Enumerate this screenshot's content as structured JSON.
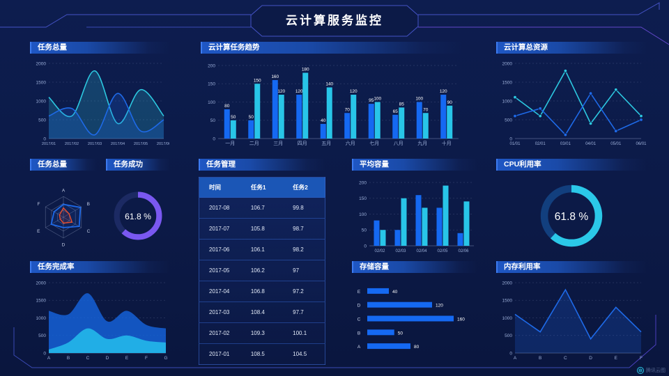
{
  "title": "云计算服务监控",
  "watermark": "腾讯云图",
  "colors": {
    "background": "#0c1a47",
    "blue": "#1569f2",
    "cyan": "#28c5e8",
    "line_blue": "#1e6ae8",
    "line_cyan": "#2cc8e0",
    "purple": "#7a58f0",
    "orange": "#e84e2c",
    "axis_text": "#9db0da",
    "frame_line": "#4553c6"
  },
  "panels": {
    "tasks_total": {
      "title": "任务总量"
    },
    "trend": {
      "title": "云计算任务趋势"
    },
    "resources": {
      "title": "云计算总资源"
    },
    "radar": {
      "title": "任务总量"
    },
    "success": {
      "title": "任务成功"
    },
    "table": {
      "title": "任务管理"
    },
    "capacity": {
      "title": "平均容量"
    },
    "cpu": {
      "title": "CPU利用率"
    },
    "completion": {
      "title": "任务完成率"
    },
    "storage": {
      "title": "存储容量"
    },
    "memory": {
      "title": "内存利用率"
    }
  },
  "chart_data": [
    {
      "id": "tasks_total",
      "type": "line",
      "title": "任务总量",
      "smooth": true,
      "area": true,
      "markers": false,
      "x": [
        "2017/01",
        "2017/02",
        "2017/03",
        "2017/04",
        "2017/05",
        "2017/06"
      ],
      "series": [
        {
          "name": "series-cyan",
          "color": "#2cc8e0",
          "values": [
            1100,
            600,
            1800,
            400,
            1300,
            600
          ]
        },
        {
          "name": "series-blue",
          "color": "#1e6ae8",
          "values": [
            600,
            800,
            100,
            1200,
            200,
            500
          ]
        }
      ],
      "ylim": [
        0,
        2000
      ],
      "yticks": [
        0,
        500,
        1000,
        1500,
        2000
      ],
      "grid": true,
      "xfont": 5.6
    },
    {
      "id": "trend",
      "type": "bar",
      "title": "云计算任务趋势",
      "value_labels": true,
      "categories": [
        "一月",
        "二月",
        "三月",
        "四月",
        "五月",
        "六月",
        "七月",
        "八月",
        "九月",
        "十月"
      ],
      "series": [
        {
          "name": "任务1",
          "color": "#1569f2",
          "values": [
            80,
            50,
            160,
            120,
            40,
            70,
            95,
            65,
            100,
            120
          ]
        },
        {
          "name": "任务2",
          "color": "#28c5e8",
          "values": [
            50,
            150,
            120,
            180,
            140,
            120,
            100,
            85,
            70,
            90
          ]
        }
      ],
      "ylim": [
        0,
        200
      ],
      "yticks": [
        0,
        50,
        100,
        150,
        200
      ],
      "grid": true,
      "xfont": 7
    },
    {
      "id": "resources",
      "type": "line",
      "title": "云计算总资源",
      "smooth": false,
      "area": false,
      "markers": true,
      "x": [
        "01/01",
        "02/01",
        "03/01",
        "04/01",
        "05/01",
        "06/01"
      ],
      "series": [
        {
          "name": "series-cyan",
          "color": "#2cc8e0",
          "values": [
            1100,
            600,
            1800,
            400,
            1300,
            600
          ]
        },
        {
          "name": "series-blue",
          "color": "#1e6ae8",
          "values": [
            600,
            800,
            100,
            1200,
            200,
            500
          ]
        }
      ],
      "ylim": [
        0,
        2000
      ],
      "yticks": [
        0,
        500,
        1000,
        1500,
        2000
      ],
      "grid": true,
      "xfont": 6
    },
    {
      "id": "radar",
      "type": "radar",
      "title": "任务总量",
      "indicators": [
        "A",
        "B",
        "C",
        "D",
        "E",
        "F"
      ],
      "max": 100,
      "series": [
        {
          "name": "blue",
          "color": "#1e6ae8",
          "values": [
            62,
            95,
            88,
            50,
            68,
            52
          ]
        },
        {
          "name": "orange",
          "color": "#e84e2c",
          "values": [
            45,
            32,
            48,
            28,
            18,
            22
          ]
        }
      ]
    },
    {
      "id": "success",
      "type": "donut",
      "title": "任务成功",
      "value": 61.8,
      "label": "61.8 %",
      "color": "#7a58f0",
      "track": "#1c2a63"
    },
    {
      "id": "table",
      "type": "table",
      "title": "任务管理",
      "headers": [
        "时间",
        "任务1",
        "任务2"
      ],
      "rows": [
        [
          "2017-08",
          "106.7",
          "99.8"
        ],
        [
          "2017-07",
          "105.8",
          "98.7"
        ],
        [
          "2017-06",
          "106.1",
          "98.2"
        ],
        [
          "2017-05",
          "106.2",
          "97"
        ],
        [
          "2017-04",
          "106.8",
          "97.2"
        ],
        [
          "2017-03",
          "108.4",
          "97.7"
        ],
        [
          "2017-02",
          "109.3",
          "100.1"
        ],
        [
          "2017-01",
          "108.5",
          "104.5"
        ]
      ]
    },
    {
      "id": "capacity",
      "type": "bar",
      "title": "平均容量",
      "value_labels": false,
      "categories": [
        "02/02",
        "02/03",
        "02/04",
        "02/05",
        "02/06"
      ],
      "series": [
        {
          "name": "blue",
          "color": "#1569f2",
          "values": [
            80,
            50,
            160,
            120,
            40
          ]
        },
        {
          "name": "cyan",
          "color": "#28c5e8",
          "values": [
            50,
            150,
            120,
            190,
            140
          ]
        }
      ],
      "ylim": [
        0,
        200
      ],
      "yticks": [
        0,
        50,
        100,
        150,
        200
      ],
      "grid": true,
      "xfont": 6
    },
    {
      "id": "cpu",
      "type": "donut",
      "title": "CPU利用率",
      "value": 61.8,
      "label": "61.8 %",
      "color": "#2bc8e8",
      "track": "#123f7e"
    },
    {
      "id": "completion",
      "type": "area",
      "title": "任务完成率",
      "x": [
        "A",
        "B",
        "C",
        "D",
        "E",
        "F",
        "G"
      ],
      "series": [
        {
          "name": "outer-blue",
          "color": "#1565e0",
          "values": [
            1200,
            1100,
            1700,
            900,
            1200,
            800,
            700
          ]
        },
        {
          "name": "inner-cyan",
          "color": "#22b3e8",
          "values": [
            100,
            300,
            700,
            400,
            500,
            350,
            300
          ]
        }
      ],
      "ylim": [
        0,
        2000
      ],
      "yticks": [
        0,
        500,
        1000,
        1500,
        2000
      ],
      "grid": true,
      "xfont": 6.5
    },
    {
      "id": "storage",
      "type": "hbar",
      "title": "存储容量",
      "categories": [
        "E",
        "D",
        "C",
        "B",
        "A"
      ],
      "values": [
        40,
        120,
        160,
        50,
        80
      ],
      "color": "#1569f2",
      "xmax": 160
    },
    {
      "id": "memory",
      "type": "line",
      "title": "内存利用率",
      "smooth": false,
      "area": true,
      "markers": false,
      "x": [
        "A",
        "B",
        "C",
        "D",
        "E",
        "F"
      ],
      "series": [
        {
          "name": "blue",
          "color": "#1e6ae8",
          "values": [
            1100,
            600,
            1800,
            400,
            1300,
            600
          ]
        }
      ],
      "ylim": [
        0,
        2000
      ],
      "yticks": [
        0,
        500,
        1000,
        1500,
        2000
      ],
      "grid": true,
      "xfont": 6.5
    }
  ]
}
